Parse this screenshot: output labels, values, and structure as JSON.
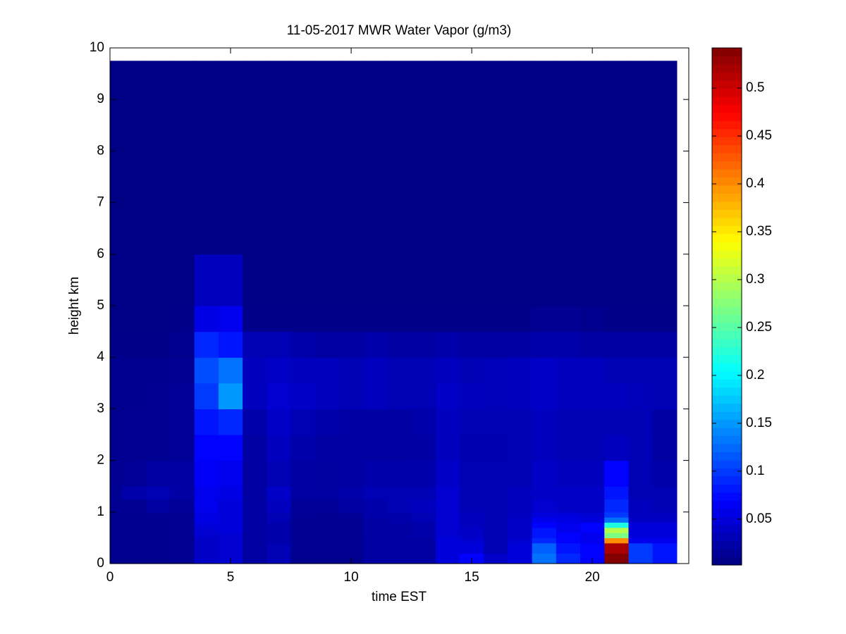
{
  "chart_data": {
    "type": "heatmap",
    "title": "11-05-2017 MWR Water Vapor (g/m3)",
    "x_label": "time EST",
    "y_label": "height km",
    "xlim": [
      0,
      24
    ],
    "ylim": [
      0,
      10
    ],
    "xticks": [
      0,
      5,
      10,
      15,
      20
    ],
    "yticks": [
      0,
      1,
      2,
      3,
      4,
      5,
      6,
      7,
      8,
      9,
      10
    ],
    "colormap": "jet",
    "clim": [
      0.002,
      0.542
    ],
    "colorbar_ticks": [
      0.05,
      0.1,
      0.15,
      0.2,
      0.25,
      0.3,
      0.35,
      0.4,
      0.45,
      0.5
    ],
    "x_edges": [
      0,
      0.5,
      1.5,
      2.5,
      3.5,
      4.5,
      5.5,
      6.5,
      7.5,
      8.5,
      9.5,
      10.5,
      11.5,
      12.5,
      13.5,
      14.5,
      15.5,
      16.5,
      17.5,
      18.5,
      19.5,
      20.5,
      21.5,
      22.5,
      23.5
    ],
    "y_edges": [
      0,
      0.2,
      0.4,
      0.5,
      0.6,
      0.7,
      0.8,
      0.9,
      1,
      1.25,
      1.5,
      2,
      2.5,
      3,
      3.5,
      4,
      4.5,
      5,
      6,
      7,
      8,
      9.75
    ],
    "z": [
      [
        0.01,
        0.01,
        0.01,
        0.012,
        0.04,
        0.045,
        0.02,
        0.03,
        0.01,
        0.01,
        0.01,
        0.02,
        0.02,
        0.02,
        0.05,
        0.07,
        0.04,
        0.05,
        0.13,
        0.09,
        0.07,
        0.54,
        0.1,
        0.08
      ],
      [
        0.01,
        0.01,
        0.01,
        0.012,
        0.04,
        0.045,
        0.02,
        0.03,
        0.012,
        0.012,
        0.012,
        0.02,
        0.02,
        0.02,
        0.05,
        0.05,
        0.03,
        0.05,
        0.12,
        0.08,
        0.07,
        0.52,
        0.1,
        0.08
      ],
      [
        0.01,
        0.01,
        0.01,
        0.012,
        0.04,
        0.045,
        0.02,
        0.025,
        0.012,
        0.012,
        0.012,
        0.02,
        0.02,
        0.02,
        0.05,
        0.045,
        0.03,
        0.045,
        0.09,
        0.07,
        0.06,
        0.4,
        0.06,
        0.06
      ],
      [
        0.01,
        0.01,
        0.01,
        0.012,
        0.045,
        0.045,
        0.02,
        0.025,
        0.012,
        0.012,
        0.012,
        0.02,
        0.022,
        0.025,
        0.045,
        0.04,
        0.03,
        0.04,
        0.08,
        0.07,
        0.06,
        0.27,
        0.05,
        0.05
      ],
      [
        0.01,
        0.01,
        0.01,
        0.012,
        0.045,
        0.05,
        0.02,
        0.025,
        0.012,
        0.012,
        0.012,
        0.022,
        0.022,
        0.025,
        0.045,
        0.04,
        0.03,
        0.04,
        0.08,
        0.06,
        0.07,
        0.3,
        0.05,
        0.05
      ],
      [
        0.01,
        0.01,
        0.01,
        0.012,
        0.05,
        0.05,
        0.02,
        0.025,
        0.012,
        0.012,
        0.012,
        0.022,
        0.022,
        0.025,
        0.045,
        0.035,
        0.03,
        0.04,
        0.07,
        0.06,
        0.07,
        0.22,
        0.05,
        0.05
      ],
      [
        0.01,
        0.01,
        0.01,
        0.012,
        0.055,
        0.05,
        0.02,
        0.03,
        0.012,
        0.012,
        0.012,
        0.022,
        0.025,
        0.03,
        0.045,
        0.035,
        0.03,
        0.04,
        0.06,
        0.055,
        0.05,
        0.13,
        0.04,
        0.04
      ],
      [
        0.01,
        0.01,
        0.012,
        0.012,
        0.055,
        0.05,
        0.02,
        0.03,
        0.015,
        0.012,
        0.015,
        0.025,
        0.025,
        0.03,
        0.045,
        0.035,
        0.03,
        0.035,
        0.05,
        0.05,
        0.045,
        0.1,
        0.035,
        0.035
      ],
      [
        0.012,
        0.012,
        0.02,
        0.015,
        0.06,
        0.05,
        0.02,
        0.035,
        0.015,
        0.015,
        0.02,
        0.025,
        0.03,
        0.035,
        0.045,
        0.03,
        0.03,
        0.035,
        0.045,
        0.04,
        0.04,
        0.09,
        0.035,
        0.03
      ],
      [
        0.012,
        0.025,
        0.03,
        0.022,
        0.06,
        0.055,
        0.02,
        0.04,
        0.02,
        0.02,
        0.025,
        0.03,
        0.03,
        0.03,
        0.045,
        0.03,
        0.03,
        0.035,
        0.04,
        0.04,
        0.04,
        0.08,
        0.03,
        0.03
      ],
      [
        0.012,
        0.015,
        0.02,
        0.02,
        0.065,
        0.06,
        0.02,
        0.03,
        0.02,
        0.018,
        0.02,
        0.025,
        0.025,
        0.025,
        0.04,
        0.03,
        0.03,
        0.03,
        0.04,
        0.035,
        0.035,
        0.07,
        0.03,
        0.025
      ],
      [
        0.01,
        0.012,
        0.012,
        0.015,
        0.07,
        0.07,
        0.02,
        0.035,
        0.025,
        0.02,
        0.02,
        0.02,
        0.02,
        0.022,
        0.035,
        0.028,
        0.028,
        0.03,
        0.035,
        0.03,
        0.03,
        0.035,
        0.03,
        0.02
      ],
      [
        0.01,
        0.012,
        0.012,
        0.015,
        0.08,
        0.09,
        0.025,
        0.04,
        0.03,
        0.025,
        0.022,
        0.022,
        0.022,
        0.025,
        0.035,
        0.03,
        0.03,
        0.03,
        0.035,
        0.03,
        0.03,
        0.03,
        0.03,
        0.022
      ],
      [
        0.01,
        0.01,
        0.012,
        0.015,
        0.1,
        0.15,
        0.035,
        0.045,
        0.04,
        0.035,
        0.03,
        0.035,
        0.03,
        0.03,
        0.04,
        0.035,
        0.032,
        0.035,
        0.04,
        0.035,
        0.035,
        0.035,
        0.032,
        0.03
      ],
      [
        0.01,
        0.01,
        0.01,
        0.012,
        0.11,
        0.13,
        0.035,
        0.04,
        0.035,
        0.035,
        0.03,
        0.035,
        0.03,
        0.03,
        0.035,
        0.03,
        0.032,
        0.035,
        0.04,
        0.035,
        0.035,
        0.03,
        0.03,
        0.03
      ],
      [
        0.008,
        0.008,
        0.008,
        0.01,
        0.09,
        0.08,
        0.03,
        0.03,
        0.025,
        0.02,
        0.02,
        0.025,
        0.02,
        0.02,
        0.025,
        0.02,
        0.02,
        0.022,
        0.025,
        0.025,
        0.022,
        0.02,
        0.02,
        0.02
      ],
      [
        0.006,
        0.006,
        0.006,
        0.008,
        0.055,
        0.06,
        0.008,
        0.008,
        0.008,
        0.008,
        0.008,
        0.008,
        0.008,
        0.008,
        0.008,
        0.008,
        0.008,
        0.008,
        0.012,
        0.012,
        0.01,
        0.008,
        0.008,
        0.008
      ],
      [
        0.006,
        0.006,
        0.006,
        0.006,
        0.035,
        0.035,
        0.006,
        0.006,
        0.006,
        0.006,
        0.006,
        0.006,
        0.006,
        0.006,
        0.006,
        0.006,
        0.006,
        0.006,
        0.006,
        0.006,
        0.006,
        0.006,
        0.006,
        0.006
      ],
      [
        0.005,
        0.005,
        0.005,
        0.005,
        0.005,
        0.005,
        0.005,
        0.005,
        0.005,
        0.005,
        0.005,
        0.005,
        0.005,
        0.005,
        0.005,
        0.005,
        0.005,
        0.005,
        0.005,
        0.005,
        0.005,
        0.005,
        0.005,
        0.005
      ],
      [
        0.005,
        0.005,
        0.005,
        0.005,
        0.005,
        0.005,
        0.005,
        0.005,
        0.005,
        0.005,
        0.005,
        0.005,
        0.005,
        0.005,
        0.005,
        0.005,
        0.005,
        0.005,
        0.005,
        0.005,
        0.005,
        0.005,
        0.005,
        0.005
      ],
      [
        0.005,
        0.005,
        0.005,
        0.005,
        0.005,
        0.005,
        0.005,
        0.005,
        0.005,
        0.005,
        0.005,
        0.005,
        0.005,
        0.005,
        0.005,
        0.005,
        0.005,
        0.005,
        0.005,
        0.005,
        0.005,
        0.005,
        0.005,
        0.005
      ]
    ]
  }
}
